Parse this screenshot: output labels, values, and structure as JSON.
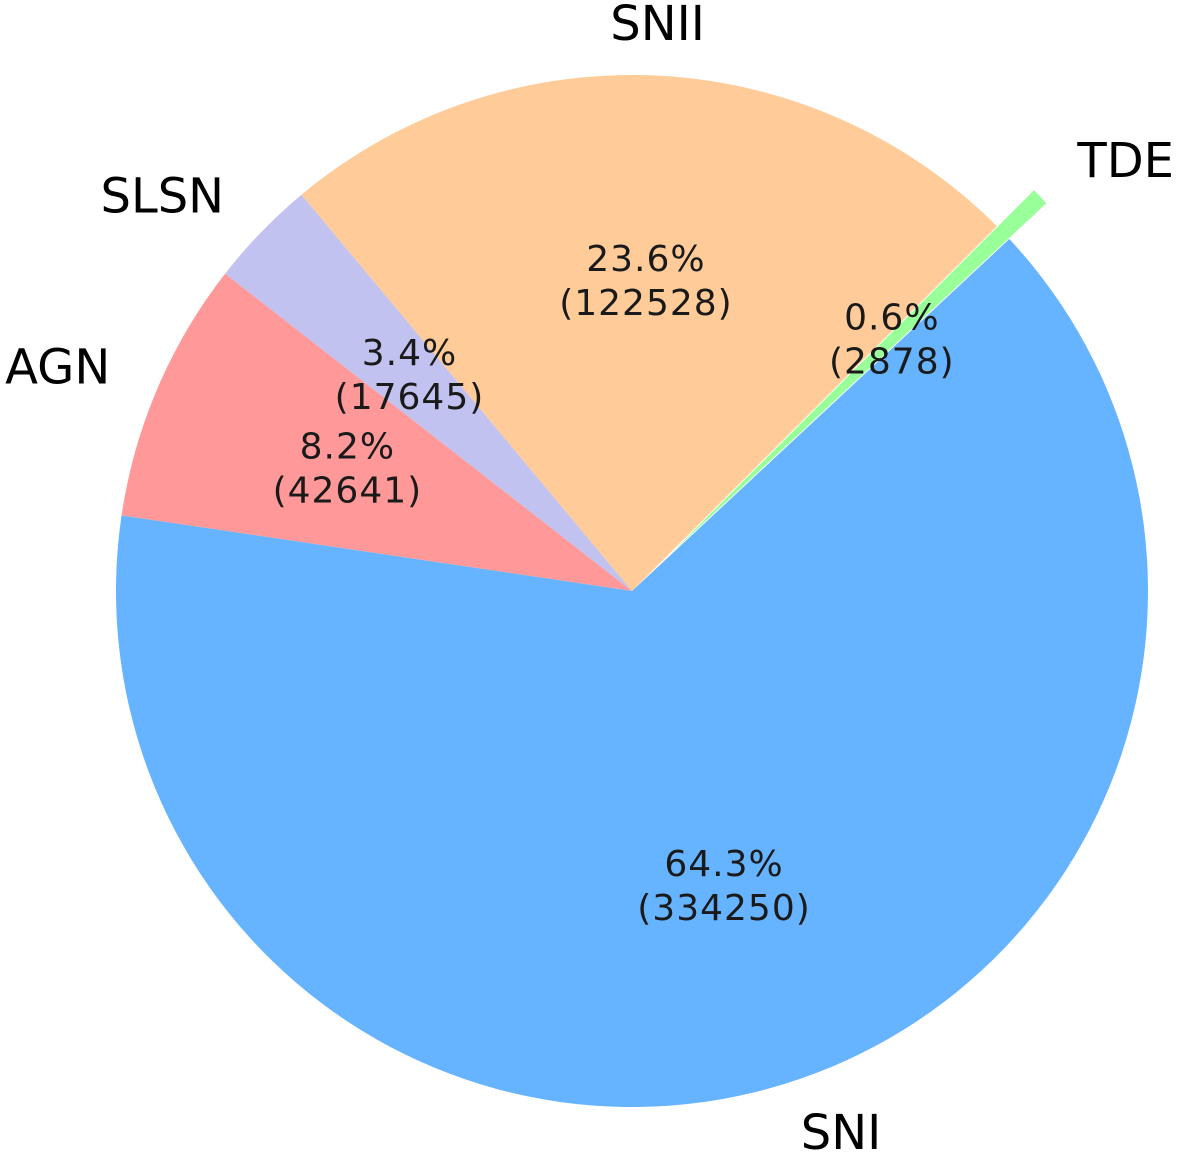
{
  "chart_data": {
    "type": "pie",
    "start_angle_deg": 45,
    "direction": "counterclockwise",
    "slices": [
      {
        "name": "SNII",
        "value": 122528,
        "percent": "23.6%",
        "count": "(122528)",
        "color": "#ffcc99",
        "explode": 0
      },
      {
        "name": "SLSN",
        "value": 17645,
        "percent": "3.4%",
        "count": "(17645)",
        "color": "#c2c2f0",
        "explode": 0
      },
      {
        "name": "AGN",
        "value": 42641,
        "percent": "8.2%",
        "count": "(42641)",
        "color": "#ff9999",
        "explode": 0
      },
      {
        "name": "SNI",
        "value": 334250,
        "percent": "64.3%",
        "count": "(334250)",
        "color": "#66b3ff",
        "explode": 0
      },
      {
        "name": "TDE",
        "value": 2878,
        "percent": "0.6%",
        "count": "(2878)",
        "color": "#99ff99",
        "explode": 0.1
      }
    ]
  }
}
